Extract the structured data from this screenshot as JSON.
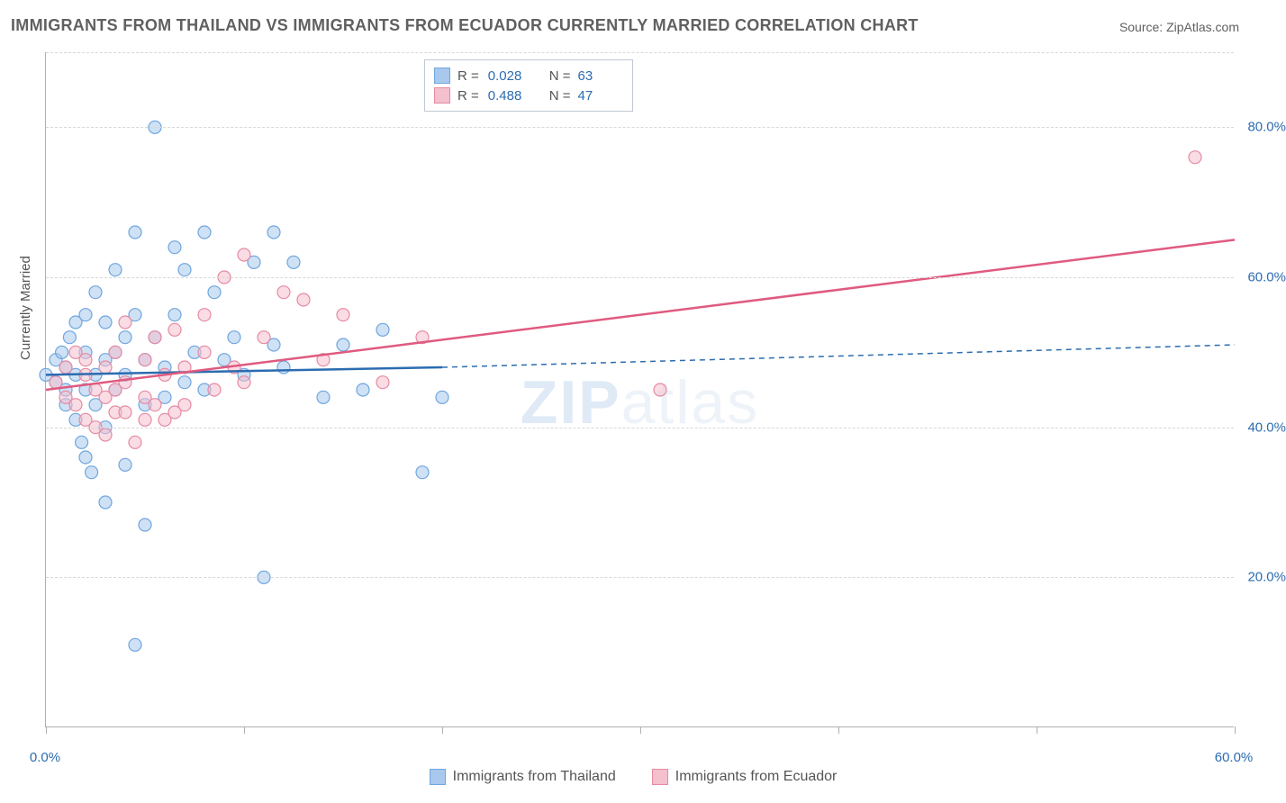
{
  "title": "IMMIGRANTS FROM THAILAND VS IMMIGRANTS FROM ECUADOR CURRENTLY MARRIED CORRELATION CHART",
  "source": "Source: ZipAtlas.com",
  "watermark_bold": "ZIP",
  "watermark_rest": "atlas",
  "y_axis_label": "Currently Married",
  "chart": {
    "type": "scatter-with-regression",
    "background_color": "#ffffff",
    "grid_color": "#d8d8d8",
    "axis_color": "#b0b0b0",
    "tick_label_color": "#2b6cb0",
    "xlim": [
      0,
      60
    ],
    "ylim": [
      0,
      90
    ],
    "x_ticks": [
      0,
      10,
      20,
      30,
      40,
      50,
      60
    ],
    "x_tick_labels": {
      "0": "0.0%",
      "60": "60.0%"
    },
    "y_ticks": [
      20,
      40,
      60,
      80
    ],
    "y_tick_labels": {
      "20": "20.0%",
      "40": "40.0%",
      "60": "60.0%",
      "80": "80.0%"
    },
    "marker_radius": 7,
    "marker_opacity": 0.55,
    "line_width": 2.5,
    "series": [
      {
        "name": "Immigrants from Thailand",
        "color_fill": "#a8c8ed",
        "color_stroke": "#6fa6de",
        "line_color": "#2b6cb0",
        "R": "0.028",
        "N": "63",
        "regression": {
          "x1": 0,
          "y1": 47,
          "x2": 20,
          "y2": 48,
          "dash_x2": 60,
          "dash_y2": 51
        },
        "points": [
          [
            0,
            47
          ],
          [
            0.5,
            49
          ],
          [
            0.5,
            46
          ],
          [
            0.8,
            50
          ],
          [
            1,
            45
          ],
          [
            1,
            43
          ],
          [
            1,
            48
          ],
          [
            1.2,
            52
          ],
          [
            1.5,
            41
          ],
          [
            1.5,
            47
          ],
          [
            1.5,
            54
          ],
          [
            1.8,
            38
          ],
          [
            2,
            36
          ],
          [
            2,
            45
          ],
          [
            2,
            50
          ],
          [
            2,
            55
          ],
          [
            2.3,
            34
          ],
          [
            2.5,
            43
          ],
          [
            2.5,
            47
          ],
          [
            2.5,
            58
          ],
          [
            3,
            30
          ],
          [
            3,
            40
          ],
          [
            3,
            49
          ],
          [
            3,
            54
          ],
          [
            3.5,
            45
          ],
          [
            3.5,
            50
          ],
          [
            3.5,
            61
          ],
          [
            4,
            35
          ],
          [
            4,
            47
          ],
          [
            4,
            52
          ],
          [
            4.5,
            11
          ],
          [
            4.5,
            66
          ],
          [
            4.5,
            55
          ],
          [
            5,
            27
          ],
          [
            5,
            43
          ],
          [
            5,
            49
          ],
          [
            5.5,
            52
          ],
          [
            5.5,
            80
          ],
          [
            6,
            44
          ],
          [
            6,
            48
          ],
          [
            6.5,
            64
          ],
          [
            6.5,
            55
          ],
          [
            7,
            46
          ],
          [
            7,
            61
          ],
          [
            7.5,
            50
          ],
          [
            8,
            66
          ],
          [
            8,
            45
          ],
          [
            8.5,
            58
          ],
          [
            9,
            49
          ],
          [
            9.5,
            52
          ],
          [
            10,
            47
          ],
          [
            10.5,
            62
          ],
          [
            11,
            20
          ],
          [
            11.5,
            66
          ],
          [
            11.5,
            51
          ],
          [
            12,
            48
          ],
          [
            12.5,
            62
          ],
          [
            14,
            44
          ],
          [
            15,
            51
          ],
          [
            16,
            45
          ],
          [
            17,
            53
          ],
          [
            19,
            34
          ],
          [
            20,
            44
          ]
        ]
      },
      {
        "name": "Immigrants from Ecuador",
        "color_fill": "#f4c0cd",
        "color_stroke": "#e68aa3",
        "line_color": "#e05a7f",
        "R": "0.488",
        "N": "47",
        "regression": {
          "x1": 0,
          "y1": 45,
          "x2": 60,
          "y2": 65
        },
        "points": [
          [
            0.5,
            46
          ],
          [
            1,
            44
          ],
          [
            1,
            48
          ],
          [
            1.5,
            43
          ],
          [
            1.5,
            50
          ],
          [
            2,
            41
          ],
          [
            2,
            47
          ],
          [
            2,
            49
          ],
          [
            2.5,
            40
          ],
          [
            2.5,
            45
          ],
          [
            3,
            39
          ],
          [
            3,
            44
          ],
          [
            3,
            48
          ],
          [
            3.5,
            42
          ],
          [
            3.5,
            50
          ],
          [
            3.5,
            45
          ],
          [
            4,
            42
          ],
          [
            4,
            46
          ],
          [
            4,
            54
          ],
          [
            4.5,
            38
          ],
          [
            5,
            41
          ],
          [
            5,
            44
          ],
          [
            5,
            49
          ],
          [
            5.5,
            43
          ],
          [
            5.5,
            52
          ],
          [
            6,
            41
          ],
          [
            6,
            47
          ],
          [
            6.5,
            42
          ],
          [
            6.5,
            53
          ],
          [
            7,
            43
          ],
          [
            7,
            48
          ],
          [
            8,
            55
          ],
          [
            8,
            50
          ],
          [
            8.5,
            45
          ],
          [
            9,
            60
          ],
          [
            9.5,
            48
          ],
          [
            10,
            63
          ],
          [
            10,
            46
          ],
          [
            11,
            52
          ],
          [
            12,
            58
          ],
          [
            13,
            57
          ],
          [
            14,
            49
          ],
          [
            15,
            55
          ],
          [
            17,
            46
          ],
          [
            19,
            52
          ],
          [
            31,
            45
          ],
          [
            58,
            76
          ]
        ]
      }
    ]
  },
  "legend_bottom": [
    {
      "swatch_fill": "#a8c8ed",
      "swatch_stroke": "#6fa6de",
      "label": "Immigrants from Thailand"
    },
    {
      "swatch_fill": "#f4c0cd",
      "swatch_stroke": "#e68aa3",
      "label": "Immigrants from Ecuador"
    }
  ]
}
